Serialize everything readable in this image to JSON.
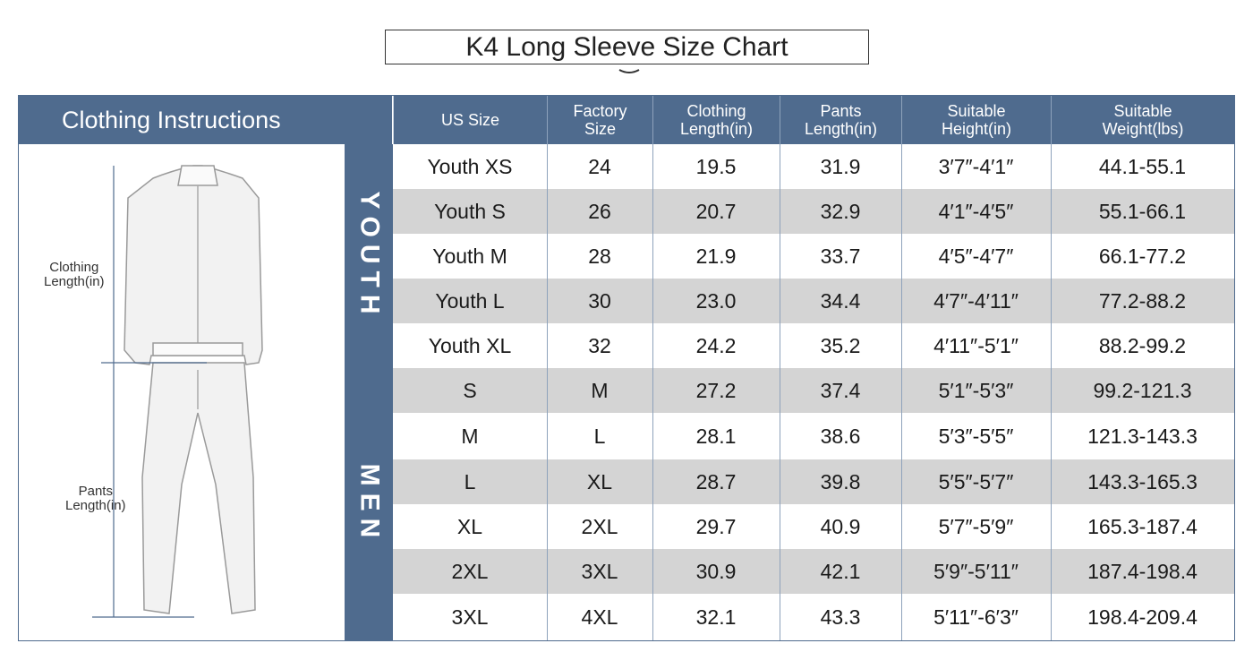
{
  "title": "K4 Long Sleeve Size Chart",
  "header": {
    "left_title": "Clothing Instructions",
    "columns": [
      {
        "line1": "US Size",
        "line2": ""
      },
      {
        "line1": "Factory",
        "line2": "Size"
      },
      {
        "line1": "Clothing",
        "line2": "Length(in)"
      },
      {
        "line1": "Pants",
        "line2": "Length(in)"
      },
      {
        "line1": "Suitable",
        "line2": "Height(in)"
      },
      {
        "line1": "Suitable",
        "line2": "Weight(lbs)"
      }
    ]
  },
  "diagram": {
    "clothing_label_1": "Clothing",
    "clothing_label_2": "Length(in)",
    "pants_label_1": "Pants",
    "pants_label_2": "Length(in)"
  },
  "groups": [
    {
      "label": "YOUTH"
    },
    {
      "label": "MEN"
    }
  ],
  "rows": [
    [
      "Youth XS",
      "24",
      "19.5",
      "31.9",
      "3′7″-4′1″",
      "44.1-55.1"
    ],
    [
      "Youth S",
      "26",
      "20.7",
      "32.9",
      "4′1″-4′5″",
      "55.1-66.1"
    ],
    [
      "Youth M",
      "28",
      "21.9",
      "33.7",
      "4′5″-4′7″",
      "66.1-77.2"
    ],
    [
      "Youth L",
      "30",
      "23.0",
      "34.4",
      "4′7″-4′11″",
      "77.2-88.2"
    ],
    [
      "Youth XL",
      "32",
      "24.2",
      "35.2",
      "4′11″-5′1″",
      "88.2-99.2"
    ],
    [
      "S",
      "M",
      "27.2",
      "37.4",
      "5′1″-5′3″",
      "99.2-121.3"
    ],
    [
      "M",
      "L",
      "28.1",
      "38.6",
      "5′3″-5′5″",
      "121.3-143.3"
    ],
    [
      "L",
      "XL",
      "28.7",
      "39.8",
      "5′5″-5′7″",
      "143.3-165.3"
    ],
    [
      "XL",
      "2XL",
      "29.7",
      "40.9",
      "5′7″-5′9″",
      "165.3-187.4"
    ],
    [
      "2XL",
      "3XL",
      "30.9",
      "42.1",
      "5′9″-5′11″",
      "187.4-198.4"
    ],
    [
      "3XL",
      "4XL",
      "32.1",
      "43.3",
      "5′11″-6′3″",
      "198.4-209.4"
    ]
  ],
  "colors": {
    "header_bg": "#4f6b8e",
    "alt_row": "#d4d4d4",
    "text": "#1a1a1a"
  }
}
